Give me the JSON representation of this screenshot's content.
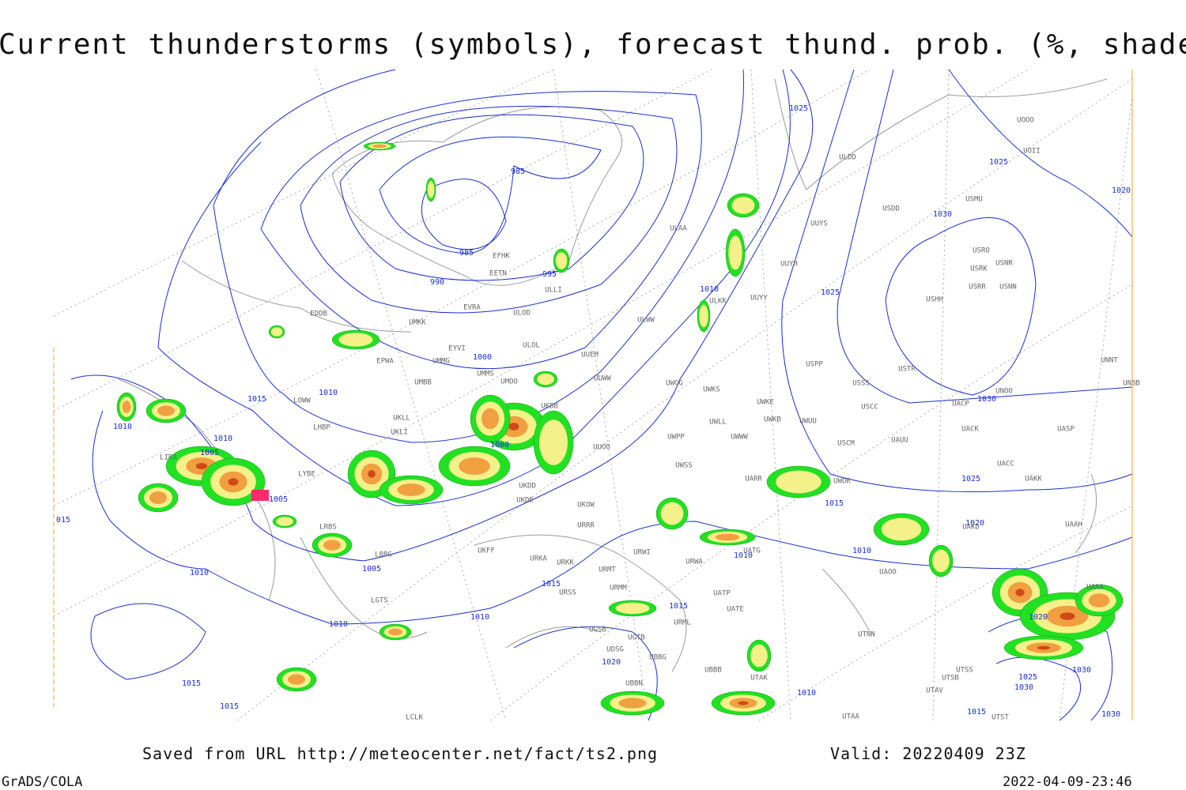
{
  "header": {
    "title": "Current thunderstorms (symbols), forecast thund. prob. (%, shaded)"
  },
  "footer": {
    "source": "Saved from URL http://meteocenter.net/fact/ts2.png",
    "valid": "Valid: 20220409 23Z",
    "software": "GrADS/COLA",
    "timestamp": "2022-04-09-23:46"
  },
  "map": {
    "isobar_labels": [
      "1025",
      "985",
      "985",
      "990",
      "995",
      "1000",
      "1015",
      "1010",
      "1010",
      "1010",
      "1005",
      "1005",
      "1000",
      "1010",
      "1025",
      "1025",
      "1030",
      "1020",
      "1030",
      "1025",
      "1020",
      "1015",
      "1010",
      "1010",
      "1015",
      "1015",
      "1010",
      "1010",
      "1005",
      "1010",
      "1015",
      "1015",
      "1020",
      "1025",
      "1030",
      "1030",
      "1015",
      "1030",
      "1010",
      "015",
      "1020"
    ],
    "stations": [
      "UOOO",
      "UOII",
      "ULDD",
      "USDD",
      "USMU",
      "UUYS",
      "ULAA",
      "EFHK",
      "EETN",
      "ULLI",
      "UUYH",
      "USRO",
      "USRK",
      "USNR",
      "USRR",
      "USNN",
      "USHH",
      "ULKK",
      "UUYY",
      "EVRA",
      "ULOD",
      "EDDB",
      "UMKK",
      "ULWW",
      "ULOL",
      "EYVI",
      "UUEM",
      "EPWA",
      "UMMG",
      "USPP",
      "UNNT",
      "USTR",
      "UMMS",
      "UMOO",
      "UUWW",
      "UWGG",
      "USSS",
      "UNBB",
      "UMBB",
      "UWKS",
      "UNOO",
      "LOWW",
      "UWKE",
      "UACP",
      "USCC",
      "UKBB",
      "UKLL",
      "UWLL",
      "UWKB",
      "UWUU",
      "LHBP",
      "UKLI",
      "UACK",
      "UASP",
      "UWPP",
      "UWWW",
      "UAUU",
      "USCM",
      "UUOO",
      "LIRA",
      "UACC",
      "UWSS",
      "LYBE",
      "UARR",
      "UWOR",
      "UAKK",
      "UKDD",
      "UKDE",
      "UKOW",
      "LRBS",
      "UAKD",
      "URRR",
      "UAAH",
      "UKFF",
      "UATG",
      "URWI",
      "UAOO",
      "URKA",
      "URKK",
      "URWA",
      "LBBG",
      "URMT",
      "UAAA",
      "URSS",
      "URMM",
      "UATP",
      "UATE",
      "URML",
      "LGTS",
      "UGSB",
      "UGTB",
      "UTNN",
      "UDSG",
      "UBBG",
      "UTSS",
      "UTSB",
      "UBBB",
      "UTAK",
      "UBBN",
      "UTAV",
      "UTAA",
      "LCLK",
      "UTST"
    ]
  }
}
